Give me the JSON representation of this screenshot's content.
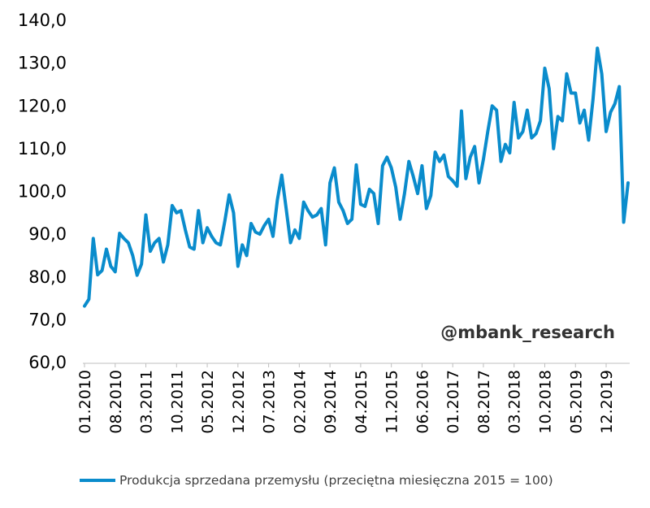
{
  "chart_data": {
    "type": "line",
    "title": "",
    "xlabel": "",
    "ylabel": "",
    "ylim": [
      60,
      140
    ],
    "y_ticks": [
      "60,0",
      "70,0",
      "80,0",
      "90,0",
      "100,0",
      "110,0",
      "120,0",
      "130,0",
      "140,0"
    ],
    "x_tick_labels": [
      "01.2010",
      "08.2010",
      "03.2011",
      "10.2011",
      "05.2012",
      "12.2012",
      "07.2013",
      "02.2014",
      "09.2014",
      "04.2015",
      "11.2015",
      "06.2016",
      "01.2017",
      "08.2017",
      "03.2018",
      "10.2018",
      "05.2019",
      "12.2019"
    ],
    "x_start": "01.2010",
    "x_end": "05.2020",
    "grid": false,
    "legend_position": "bottom",
    "series_color": "#0a8ccc",
    "series": [
      {
        "name": "Produkcja sprzedana przemysłu (przeciętna miesięczna 2015 = 100)",
        "values": [
          73.2,
          74.8,
          89.0,
          80.5,
          81.5,
          86.5,
          82.5,
          81.2,
          90.2,
          89.0,
          88.0,
          85.0,
          80.4,
          83.0,
          94.5,
          86.0,
          88.0,
          89.0,
          83.5,
          87.5,
          96.7,
          95.0,
          95.5,
          91.0,
          87.0,
          86.5,
          95.5,
          88.0,
          91.5,
          89.5,
          88.0,
          87.5,
          93.0,
          99.2,
          95.0,
          82.5,
          87.5,
          85.0,
          92.5,
          90.5,
          90.0,
          92.0,
          93.5,
          89.5,
          98.0,
          103.8,
          96.0,
          88.0,
          91.0,
          89.0,
          97.5,
          95.5,
          94.0,
          94.5,
          96.0,
          87.5,
          102.0,
          105.5,
          97.5,
          95.5,
          92.5,
          93.5,
          106.2,
          97.0,
          96.5,
          100.5,
          99.5,
          92.5,
          106.0,
          108.0,
          105.5,
          101.0,
          93.5,
          99.5,
          107.0,
          103.5,
          99.5,
          106.0,
          96.0,
          99.0,
          109.2,
          107.0,
          108.5,
          103.5,
          102.5,
          101.2,
          118.8,
          103.0,
          108.0,
          110.5,
          102.0,
          107.5,
          114.0,
          120.0,
          119.0,
          107.0,
          111.0,
          109.0,
          120.8,
          112.5,
          114.0,
          119.0,
          112.5,
          113.5,
          116.5,
          128.8,
          124.0,
          110.0,
          117.5,
          116.5,
          127.5,
          123.0,
          123.0,
          116.0,
          119.0,
          112.0,
          121.5,
          133.5,
          127.5,
          114.0,
          118.5,
          120.5,
          124.5,
          92.8,
          102.0
        ]
      }
    ]
  },
  "watermark": "@mbank_research"
}
